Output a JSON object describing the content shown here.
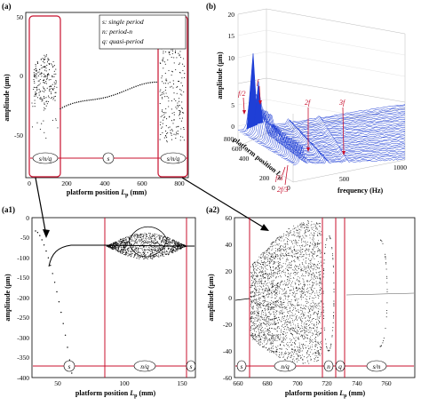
{
  "panels": {
    "a": {
      "label": "(a)",
      "ylabel": "amplitude (μm)",
      "xlabel_pre": "platform position ",
      "xlabel_sym": "L",
      "xlabel_sub": "p",
      "xlabel_post": " (mm)",
      "xticks": [
        "0",
        "200",
        "400",
        "600",
        "800"
      ],
      "yticks": [
        "50",
        "0",
        "-50"
      ],
      "legend": [
        "s: single period",
        "n: period-n",
        "q: quasi-period"
      ],
      "regions": [
        "s/n/q",
        "s",
        "s/n/q"
      ]
    },
    "b": {
      "label": "(b)",
      "zlabel": "amplitude (μm)",
      "ylabel_pre": "platform position ",
      "ylabel_sym": "L",
      "ylabel_sub": "p",
      "xlabel": "frequency (Hz)",
      "zticks": [
        "20",
        "15",
        "10",
        "5",
        "0"
      ],
      "yticks": [
        "800",
        "600",
        "400",
        "200",
        "0"
      ],
      "xticks": [
        "0",
        "500",
        "1000"
      ],
      "annotations": [
        "f/2",
        "f",
        "2f",
        "3f",
        "f/3",
        "2f/3"
      ]
    },
    "a1": {
      "label": "(a1)",
      "ylabel": "amplitude (μm)",
      "xlabel_pre": "platform position ",
      "xlabel_sym": "L",
      "xlabel_sub": "p",
      "xlabel_post": " (mm)",
      "xticks": [
        "50",
        "100",
        "150"
      ],
      "yticks": [
        "0",
        "-50",
        "-100",
        "-150",
        "-200",
        "-250",
        "-300",
        "-350",
        "-400"
      ],
      "regions": [
        "s",
        "n/q",
        "s"
      ]
    },
    "a2": {
      "label": "(a2)",
      "ylabel": "amplitude (μm)",
      "xlabel_pre": "platform position ",
      "xlabel_sym": "L",
      "xlabel_sub": "p",
      "xlabel_post": " (mm)",
      "xticks": [
        "660",
        "680",
        "700",
        "720",
        "740",
        "760"
      ],
      "yticks": [
        "60",
        "40",
        "20",
        "0",
        "-20",
        "-40",
        "-60"
      ],
      "regions": [
        "s",
        "n/q",
        "n",
        "q",
        "s/n"
      ]
    }
  },
  "colors": {
    "accent_red": "#c8102e",
    "spectrum_blue": "#1f3fd6"
  }
}
